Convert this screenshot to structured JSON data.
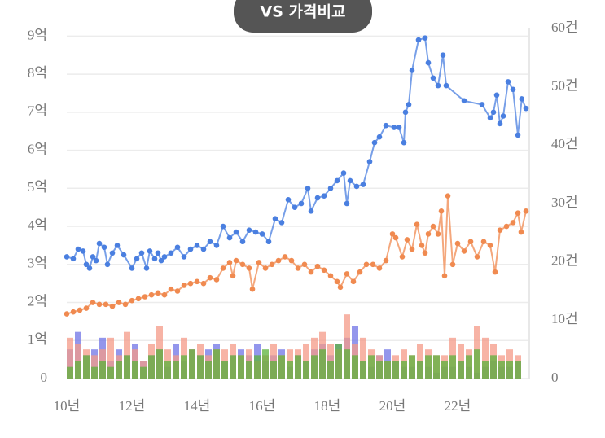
{
  "chart_data": {
    "type": "combo",
    "title": "VS 가격비교",
    "xlim": [
      10,
      24.2
    ],
    "xticks": [
      {
        "value": 10,
        "label": "10년"
      },
      {
        "value": 12,
        "label": "12년"
      },
      {
        "value": 14,
        "label": "14년"
      },
      {
        "value": 16,
        "label": "16년"
      },
      {
        "value": 18,
        "label": "18년"
      },
      {
        "value": 20,
        "label": "20년"
      },
      {
        "value": 22,
        "label": "22년"
      }
    ],
    "ylim": [
      0,
      9.2
    ],
    "yticks": [
      0,
      {
        "value": 1,
        "label": "1억"
      },
      {
        "value": 2,
        "label": "2억"
      },
      {
        "value": 3,
        "label": "3억"
      },
      {
        "value": 4,
        "label": "4억"
      },
      {
        "value": 5,
        "label": "5억"
      },
      {
        "value": 6,
        "label": "6억"
      },
      {
        "value": 7,
        "label": "7억"
      },
      {
        "value": 8,
        "label": "8억"
      },
      {
        "value": 9,
        "label": "9억"
      }
    ],
    "y2lim": [
      0,
      60
    ],
    "y2ticks": [
      0,
      {
        "value": 10,
        "label": "10건"
      },
      {
        "value": 20,
        "label": "20건"
      },
      {
        "value": 30,
        "label": "30건"
      },
      {
        "value": 40,
        "label": "40건"
      },
      {
        "value": 50,
        "label": "50건"
      },
      {
        "value": 60,
        "label": "60건"
      }
    ],
    "grid": true,
    "series": [
      {
        "kind": "bar",
        "axis": "y2",
        "color": "#6f74e6",
        "x": [
          10,
          10.25,
          10.5,
          10.75,
          11,
          11.25,
          11.5,
          11.75,
          12,
          12.25,
          12.5,
          12.75,
          13,
          13.25,
          13.5,
          13.75,
          14,
          14.25,
          14.5,
          14.75,
          15,
          15.25,
          15.5,
          15.75,
          16,
          16.25,
          16.5,
          16.75,
          17,
          17.25,
          17.5,
          17.75,
          18,
          18.25,
          18.5,
          18.75,
          19,
          19.25,
          19.5,
          19.75,
          20,
          20.25,
          20.5,
          20.75,
          21,
          21.25,
          21.5,
          21.75,
          22,
          22.25,
          22.5,
          22.75,
          23,
          23.25,
          23.5,
          23.75
        ],
        "values": [
          5,
          8,
          4,
          5,
          7,
          3,
          5,
          4,
          6,
          3,
          4,
          5,
          2,
          6,
          3,
          5,
          4,
          5,
          6,
          3,
          4,
          5,
          4,
          6,
          3,
          4,
          5,
          2,
          4,
          3,
          5,
          6,
          4,
          6,
          7,
          9,
          3,
          2,
          4,
          5,
          3,
          2,
          2,
          3,
          2,
          1,
          2,
          2,
          3,
          2,
          1,
          2,
          3,
          2,
          2,
          3
        ]
      },
      {
        "kind": "bar",
        "axis": "y2",
        "color": "#f59a88",
        "x": [
          10,
          10.25,
          10.5,
          10.75,
          11,
          11.25,
          11.5,
          11.75,
          12,
          12.25,
          12.5,
          12.75,
          13,
          13.25,
          13.5,
          13.75,
          14,
          14.25,
          14.5,
          14.75,
          15,
          15.25,
          15.5,
          15.75,
          16,
          16.25,
          16.5,
          16.75,
          17,
          17.25,
          17.5,
          17.75,
          18,
          18.25,
          18.5,
          18.75,
          19,
          19.25,
          19.5,
          19.75,
          20,
          20.25,
          20.5,
          20.75,
          21,
          21.25,
          21.5,
          21.75,
          22,
          22.25,
          22.5,
          22.75,
          23,
          23.25,
          23.5,
          23.75
        ],
        "values": [
          7,
          6,
          5,
          4,
          5,
          7,
          4,
          8,
          5,
          3,
          6,
          9,
          5,
          4,
          7,
          5,
          6,
          4,
          5,
          5,
          6,
          4,
          5,
          3,
          4,
          6,
          4,
          5,
          5,
          6,
          7,
          8,
          6,
          5,
          11,
          6,
          7,
          5,
          4,
          3,
          4,
          5,
          4,
          6,
          5,
          4,
          4,
          7,
          6,
          5,
          9,
          7,
          6,
          4,
          5,
          4
        ]
      },
      {
        "kind": "bar",
        "axis": "y2",
        "color": "#5cb23c",
        "x": [
          10,
          10.25,
          10.5,
          10.75,
          11,
          11.25,
          11.5,
          11.75,
          12,
          12.25,
          12.5,
          12.75,
          13,
          13.25,
          13.5,
          13.75,
          14,
          14.25,
          14.5,
          14.75,
          15,
          15.25,
          15.5,
          15.75,
          16,
          16.25,
          16.5,
          16.75,
          17,
          17.25,
          17.5,
          17.75,
          18,
          18.25,
          18.5,
          18.75,
          19,
          19.25,
          19.5,
          19.75,
          20,
          20.25,
          20.5,
          20.75,
          21,
          21.25,
          21.5,
          21.75,
          22,
          22.25,
          22.5,
          22.75,
          23,
          23.25,
          23.5,
          23.75
        ],
        "values": [
          2,
          3,
          4,
          2,
          3,
          2,
          3,
          4,
          3,
          2,
          4,
          5,
          3,
          3,
          4,
          5,
          4,
          3,
          5,
          3,
          4,
          4,
          3,
          4,
          5,
          3,
          4,
          3,
          4,
          3,
          4,
          5,
          3,
          6,
          5,
          4,
          3,
          4,
          3,
          3,
          3,
          3,
          4,
          3,
          4,
          4,
          3,
          4,
          3,
          4,
          5,
          3,
          4,
          3,
          3,
          3
        ]
      },
      {
        "kind": "line",
        "color": "#f08a50",
        "x": [
          10,
          10.2,
          10.4,
          10.6,
          10.8,
          11,
          11.2,
          11.4,
          11.6,
          11.8,
          12,
          12.2,
          12.4,
          12.6,
          12.8,
          13,
          13.2,
          13.4,
          13.6,
          13.8,
          14,
          14.2,
          14.4,
          14.6,
          14.8,
          15,
          15.1,
          15.2,
          15.4,
          15.6,
          15.7,
          15.9,
          16.1,
          16.3,
          16.5,
          16.7,
          16.9,
          17.1,
          17.3,
          17.5,
          17.7,
          17.9,
          18.1,
          18.3,
          18.4,
          18.6,
          18.8,
          19,
          19.2,
          19.4,
          19.6,
          19.8,
          20,
          20.1,
          20.3,
          20.45,
          20.6,
          20.75,
          20.9,
          21,
          21.1,
          21.25,
          21.4,
          21.5,
          21.6,
          21.7,
          21.85,
          22,
          22.2,
          22.4,
          22.6,
          22.8,
          23,
          23.15,
          23.3,
          23.5,
          23.7,
          23.85,
          23.95,
          24.1
        ],
        "values": [
          1.7,
          1.75,
          1.8,
          1.85,
          2.0,
          1.95,
          1.95,
          1.9,
          2.0,
          1.95,
          2.05,
          2.1,
          2.15,
          2.2,
          2.25,
          2.2,
          2.35,
          2.3,
          2.45,
          2.5,
          2.55,
          2.5,
          2.65,
          2.6,
          2.9,
          3.05,
          2.7,
          3.1,
          3.0,
          2.9,
          2.35,
          3.05,
          2.9,
          3.0,
          3.1,
          3.2,
          3.1,
          2.9,
          3.0,
          2.8,
          2.95,
          2.85,
          2.7,
          2.55,
          2.4,
          2.75,
          2.55,
          2.8,
          3.0,
          3.0,
          2.9,
          3.1,
          3.8,
          3.7,
          3.2,
          3.65,
          3.4,
          4.05,
          3.5,
          3.3,
          3.8,
          4.0,
          3.8,
          4.4,
          2.7,
          4.8,
          3.0,
          3.55,
          3.35,
          3.6,
          3.2,
          3.6,
          3.5,
          2.8,
          3.9,
          4.0,
          4.1,
          4.35,
          3.85,
          4.4
        ]
      },
      {
        "kind": "line",
        "color": "#4a7fe0",
        "x": [
          10,
          10.2,
          10.35,
          10.5,
          10.6,
          10.7,
          10.8,
          10.9,
          11,
          11.15,
          11.25,
          11.4,
          11.55,
          11.75,
          12,
          12.15,
          12.3,
          12.45,
          12.55,
          12.7,
          12.8,
          12.9,
          13,
          13.2,
          13.4,
          13.6,
          13.8,
          14,
          14.2,
          14.4,
          14.6,
          14.8,
          15,
          15.2,
          15.4,
          15.6,
          15.8,
          16,
          16.2,
          16.4,
          16.6,
          16.8,
          17,
          17.2,
          17.4,
          17.5,
          17.7,
          17.9,
          18.1,
          18.3,
          18.5,
          18.6,
          18.7,
          18.9,
          19.1,
          19.3,
          19.45,
          19.6,
          19.8,
          20.05,
          20.2,
          20.35,
          20.4,
          20.5,
          20.6,
          20.8,
          21,
          21.1,
          21.25,
          21.4,
          21.55,
          21.65,
          22.2,
          22.75,
          23,
          23.1,
          23.2,
          23.3,
          23.4,
          23.55,
          23.7,
          23.85,
          23.97,
          24.1
        ],
        "values": [
          3.2,
          3.15,
          3.4,
          3.35,
          3.0,
          2.9,
          3.2,
          3.1,
          3.55,
          3.45,
          3.0,
          3.3,
          3.5,
          3.25,
          2.9,
          3.15,
          3.3,
          2.9,
          3.35,
          3.15,
          3.3,
          3.1,
          3.2,
          3.3,
          3.45,
          3.2,
          3.4,
          3.5,
          3.4,
          3.6,
          3.5,
          4.0,
          3.7,
          3.85,
          3.6,
          3.9,
          3.85,
          3.8,
          3.6,
          4.2,
          4.1,
          4.7,
          4.5,
          4.6,
          5.0,
          4.4,
          4.75,
          4.8,
          5.0,
          5.2,
          5.4,
          4.6,
          5.2,
          5.05,
          5.1,
          5.7,
          6.2,
          6.35,
          6.65,
          6.6,
          6.6,
          6.2,
          7.0,
          7.2,
          8.1,
          8.9,
          8.95,
          8.3,
          7.9,
          7.7,
          8.5,
          7.7,
          7.3,
          7.2,
          6.85,
          7.0,
          7.45,
          6.7,
          6.9,
          7.8,
          7.6,
          6.4,
          7.35,
          7.1
        ]
      }
    ]
  }
}
